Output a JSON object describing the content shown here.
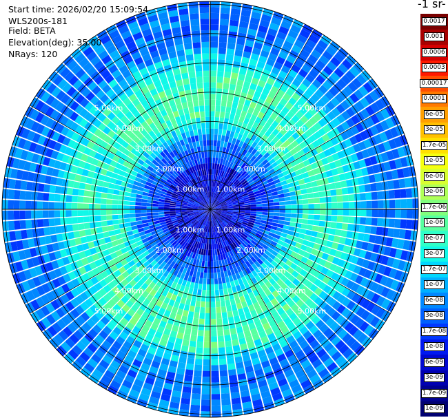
{
  "info": {
    "start_time": "Start time: 2026/02/20 15:09:54",
    "instrument": "WLS200s-181",
    "field": "Field: BETA",
    "elevation": "Elevation(deg): 35.00",
    "nrays": "NRays: 120"
  },
  "colorbar": {
    "title": "-1 sr-",
    "labels": [
      "0.0017",
      "0.001",
      "0.0006",
      "0.0003",
      "0.00017",
      "0.0001",
      "6e-05",
      "3e-05",
      "1.7e-05",
      "1e-05",
      "6e-06",
      "3e-06",
      "1.7e-06",
      "1e-06",
      "6e-07",
      "3e-07",
      "1.7e-07",
      "1e-07",
      "6e-08",
      "3e-08",
      "1.7e-08",
      "1e-08",
      "6e-09",
      "3e-09",
      "1.7e-09",
      "1e-09"
    ],
    "colors": [
      "#7a0000",
      "#a80000",
      "#d40000",
      "#ff1a00",
      "#ff4d00",
      "#ff7a00",
      "#ff9f00",
      "#ffc000",
      "#ffe000",
      "#f5ff10",
      "#d8ff30",
      "#b0ff58",
      "#80ff7c",
      "#58ffa0",
      "#30ffc8",
      "#10f8e8",
      "#00d8ff",
      "#00b0ff",
      "#0088ff",
      "#0060ff",
      "#0038ff",
      "#0018f0",
      "#0008d0",
      "#0000b0",
      "#000090",
      "#000070"
    ]
  },
  "map": {
    "range_labels": [
      "1.00km",
      "2.00km",
      "3.00km",
      "4.00km",
      "5.00km"
    ],
    "range_values_km": [
      1,
      2,
      3,
      4,
      5
    ],
    "max_range_km": 7.1
  }
}
